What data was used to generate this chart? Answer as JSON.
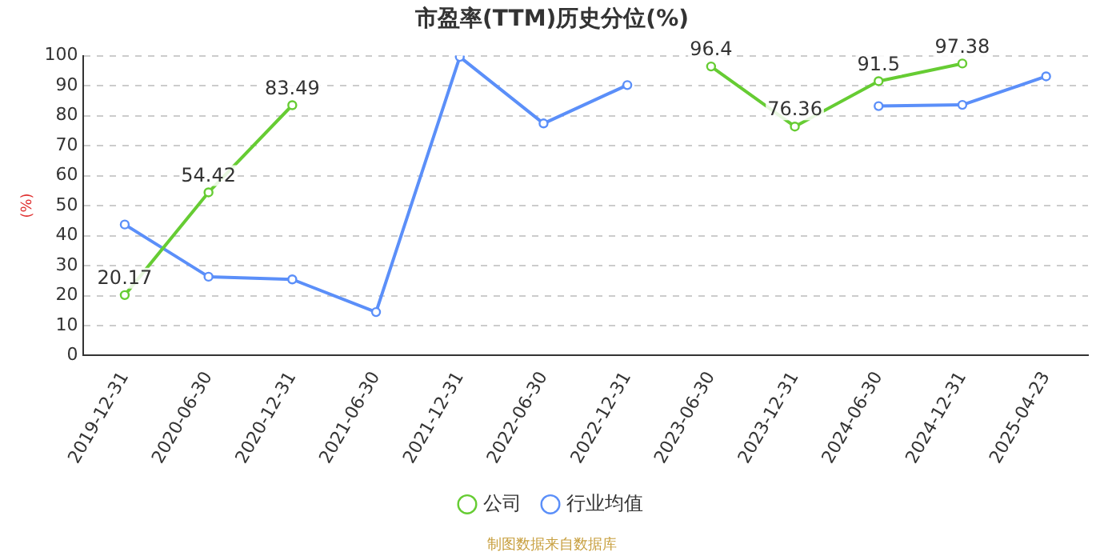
{
  "chart_data": {
    "type": "line",
    "title": "市盈率(TTM)历史分位(%)",
    "ylabel": "(%)",
    "categories": [
      "2019-12-31",
      "2020-06-30",
      "2020-12-31",
      "2021-06-30",
      "2021-12-31",
      "2022-06-30",
      "2022-12-31",
      "2023-06-30",
      "2023-12-31",
      "2024-06-30",
      "2024-12-31",
      "2025-04-23"
    ],
    "series": [
      {
        "name": "公司",
        "color": "#66cc33",
        "values": [
          20.17,
          54.42,
          83.49,
          null,
          null,
          null,
          null,
          96.4,
          76.36,
          91.5,
          97.38,
          null
        ],
        "value_labels": [
          "20.17",
          "54.42",
          "83.49",
          null,
          null,
          null,
          null,
          "96.4",
          "76.36",
          "91.5",
          "97.38",
          null
        ]
      },
      {
        "name": "行业均值",
        "color": "#5b8ff9",
        "values": [
          43.7,
          26.3,
          25.4,
          14.5,
          99.6,
          77.4,
          90.2,
          null,
          null,
          83.2,
          83.6,
          93.1
        ]
      }
    ],
    "ylim": [
      0,
      100
    ],
    "yticks": [
      0,
      10,
      20,
      30,
      40,
      50,
      60,
      70,
      80,
      90,
      100
    ],
    "grid": "y",
    "legend": "bottom",
    "marker": "circle",
    "line_style": "solid",
    "annotations": [
      "制图数据来自数据库"
    ]
  }
}
